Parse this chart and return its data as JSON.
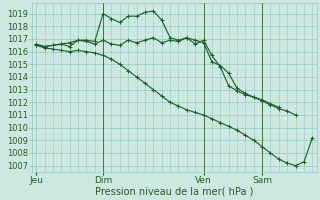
{
  "xlabel": "Pression niveau de la mer( hPa )",
  "ylim": [
    1006.5,
    1019.8
  ],
  "yticks": [
    1007,
    1008,
    1009,
    1010,
    1011,
    1012,
    1013,
    1014,
    1015,
    1016,
    1017,
    1018,
    1019
  ],
  "background_color": "#cce8e0",
  "grid_color": "#98c8be",
  "line_color": "#1a5c2a",
  "vline_color": "#2d5a27",
  "xtick_labels": [
    "Jeu",
    "Dim",
    "Ven",
    "Sam"
  ],
  "xtick_positions": [
    0,
    8,
    20,
    27
  ],
  "xlim": [
    -0.5,
    33.5
  ],
  "series1_x": [
    0,
    1,
    2,
    3,
    4,
    5,
    6,
    7,
    8,
    9,
    10,
    11,
    12,
    13,
    14,
    15,
    16,
    17,
    18,
    19,
    20,
    21,
    22,
    23,
    24,
    25,
    26,
    27,
    28,
    29,
    30,
    31,
    32,
    33
  ],
  "series1_y": [
    1016.5,
    1016.3,
    1016.2,
    1016.1,
    1016.0,
    1016.1,
    1016.0,
    1015.9,
    1015.7,
    1015.4,
    1015.0,
    1014.5,
    1014.0,
    1013.5,
    1013.0,
    1012.5,
    1012.0,
    1011.7,
    1011.4,
    1011.2,
    1011.0,
    1010.7,
    1010.4,
    1010.1,
    1009.8,
    1009.4,
    1009.0,
    1008.5,
    1008.0,
    1007.5,
    1007.2,
    1007.0,
    1007.3,
    1009.2
  ],
  "series2_x": [
    0,
    1,
    2,
    3,
    4,
    5,
    6,
    7,
    8,
    9,
    10,
    11,
    12,
    13,
    14,
    15,
    16,
    17,
    18,
    19,
    20,
    21,
    22,
    23,
    24,
    25,
    26,
    27,
    28,
    29,
    30,
    31
  ],
  "series2_y": [
    1016.5,
    1016.4,
    1016.5,
    1016.6,
    1016.7,
    1016.9,
    1016.9,
    1016.8,
    1019.0,
    1018.6,
    1018.3,
    1018.8,
    1018.8,
    1019.1,
    1019.2,
    1018.5,
    1017.1,
    1016.9,
    1017.1,
    1016.9,
    1016.7,
    1015.2,
    1014.9,
    1014.3,
    1013.1,
    1012.7,
    1012.4,
    1012.1,
    1011.8,
    1011.5,
    1011.3,
    1011.0
  ],
  "series3_x": [
    0,
    1,
    2,
    3,
    4,
    5,
    6,
    7,
    8,
    9,
    10,
    11,
    12,
    13,
    14,
    15,
    16,
    17,
    18,
    19,
    20,
    21,
    22,
    23,
    24,
    25,
    26,
    27,
    28,
    29
  ],
  "series3_y": [
    1016.6,
    1016.4,
    1016.5,
    1016.6,
    1016.4,
    1016.9,
    1016.8,
    1016.6,
    1016.9,
    1016.6,
    1016.5,
    1016.9,
    1016.7,
    1016.9,
    1017.1,
    1016.7,
    1016.9,
    1016.8,
    1017.1,
    1016.6,
    1016.9,
    1015.7,
    1014.8,
    1013.3,
    1012.9,
    1012.6,
    1012.4,
    1012.2,
    1011.9,
    1011.6
  ]
}
